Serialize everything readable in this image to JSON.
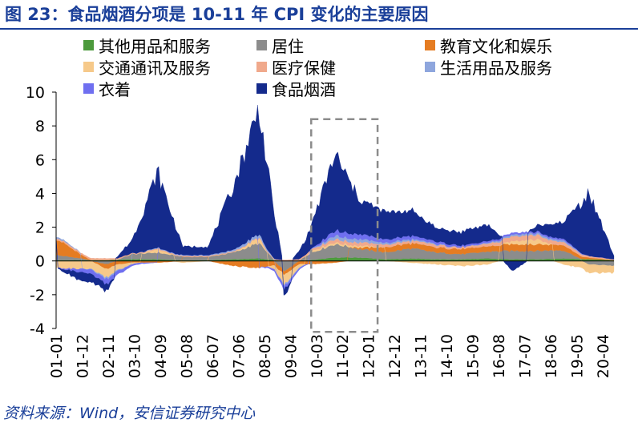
{
  "title": "图 23：食品烟酒分项是 10-11 年 CPI 变化的主要原因",
  "source": "资料来源：Wind，安信证券研究中心",
  "chart_data": {
    "type": "area",
    "stacked": true,
    "x_tick_labels": [
      "01-01",
      "01-12",
      "02-11",
      "03-10",
      "04-09",
      "05-08",
      "06-07",
      "07-06",
      "08-05",
      "09-04",
      "10-03",
      "11-02",
      "12-01",
      "12-12",
      "13-11",
      "14-10",
      "15-09",
      "16-08",
      "17-07",
      "18-06",
      "19-05",
      "20-04"
    ],
    "ylim": [
      -4,
      10
    ],
    "y_ticks": [
      -4,
      -2,
      0,
      2,
      4,
      6,
      8,
      10
    ],
    "legend_position": "top",
    "highlight_box": {
      "x_start": "10-01",
      "x_end": "12-02",
      "y_range": [
        -4.2,
        8.4
      ],
      "style": "dashed gray"
    },
    "x_sample": [
      "01-01",
      "01-12",
      "02-11",
      "03-10",
      "04-09",
      "05-08",
      "06-07",
      "07-06",
      "08-05",
      "09-04",
      "10-03",
      "11-02",
      "12-01",
      "12-12",
      "13-11",
      "14-10",
      "15-09",
      "16-08",
      "17-07",
      "18-06",
      "19-05",
      "20-04",
      "20-12"
    ],
    "series": [
      {
        "name": "其他用品和服务",
        "color": "#4c9a3c",
        "values": [
          0.05,
          0.05,
          0.05,
          0.1,
          0.1,
          0.05,
          0.05,
          0.1,
          0.15,
          0.0,
          0.05,
          0.2,
          0.2,
          0.1,
          0.15,
          0.1,
          0.1,
          0.15,
          0.1,
          0.1,
          0.15,
          0.1,
          0.05
        ]
      },
      {
        "name": "居住",
        "color": "#8c8c8c",
        "values": [
          0.3,
          0.1,
          -0.2,
          0.3,
          0.4,
          0.2,
          0.2,
          0.4,
          0.9,
          -0.6,
          0.4,
          0.8,
          0.5,
          0.4,
          0.6,
          0.4,
          0.3,
          0.4,
          0.5,
          0.5,
          0.5,
          -0.2,
          -0.3
        ]
      },
      {
        "name": "教育文化和娱乐",
        "color": "#e57c22",
        "values": [
          1.0,
          0.2,
          -0.3,
          -0.1,
          -0.1,
          0.0,
          0.0,
          -0.3,
          -0.4,
          -0.2,
          -0.2,
          -0.1,
          0.1,
          0.3,
          0.3,
          0.3,
          0.3,
          0.3,
          0.4,
          0.4,
          0.3,
          0.1,
          0.0
        ]
      },
      {
        "name": "交通通讯及服务",
        "color": "#f6c98a",
        "values": [
          -0.4,
          -0.5,
          -0.5,
          -0.1,
          0.2,
          -0.1,
          0.0,
          0.0,
          0.3,
          -0.6,
          0.1,
          0.1,
          0.1,
          0.0,
          -0.1,
          -0.2,
          -0.3,
          -0.2,
          0.2,
          0.3,
          -0.2,
          -0.5,
          -0.4
        ]
      },
      {
        "name": "医疗保健",
        "color": "#f0a98c",
        "values": [
          0.1,
          0.1,
          0.1,
          0.05,
          0.05,
          0.05,
          0.05,
          0.05,
          0.05,
          0.05,
          0.1,
          0.2,
          0.2,
          0.15,
          0.15,
          0.15,
          0.1,
          0.15,
          0.3,
          0.25,
          0.2,
          0.1,
          0.05
        ]
      },
      {
        "name": "生活用品及服务",
        "color": "#8ea6dd",
        "values": [
          0.1,
          0.0,
          -0.1,
          0.0,
          0.05,
          0.05,
          0.05,
          0.1,
          0.2,
          -0.1,
          0.0,
          0.2,
          0.2,
          0.1,
          0.1,
          0.05,
          0.0,
          0.05,
          0.1,
          0.1,
          0.1,
          0.0,
          0.0
        ]
      },
      {
        "name": "衣着",
        "color": "#6f6ff0",
        "values": [
          0.0,
          -0.2,
          -0.3,
          -0.1,
          0.0,
          0.0,
          0.0,
          0.0,
          0.0,
          -0.2,
          0.0,
          0.3,
          0.3,
          0.2,
          0.2,
          0.15,
          0.1,
          0.1,
          0.1,
          0.1,
          0.1,
          0.0,
          0.0
        ]
      },
      {
        "name": "食品烟酒",
        "color": "#142a8c",
        "values": [
          0.0,
          -0.5,
          -0.4,
          0.8,
          4.5,
          0.5,
          0.5,
          3.8,
          7.5,
          -0.5,
          1.2,
          4.5,
          2.0,
          1.6,
          1.5,
          0.8,
          0.8,
          1.0,
          -0.6,
          0.4,
          1.0,
          3.8,
          0.2
        ]
      }
    ]
  }
}
